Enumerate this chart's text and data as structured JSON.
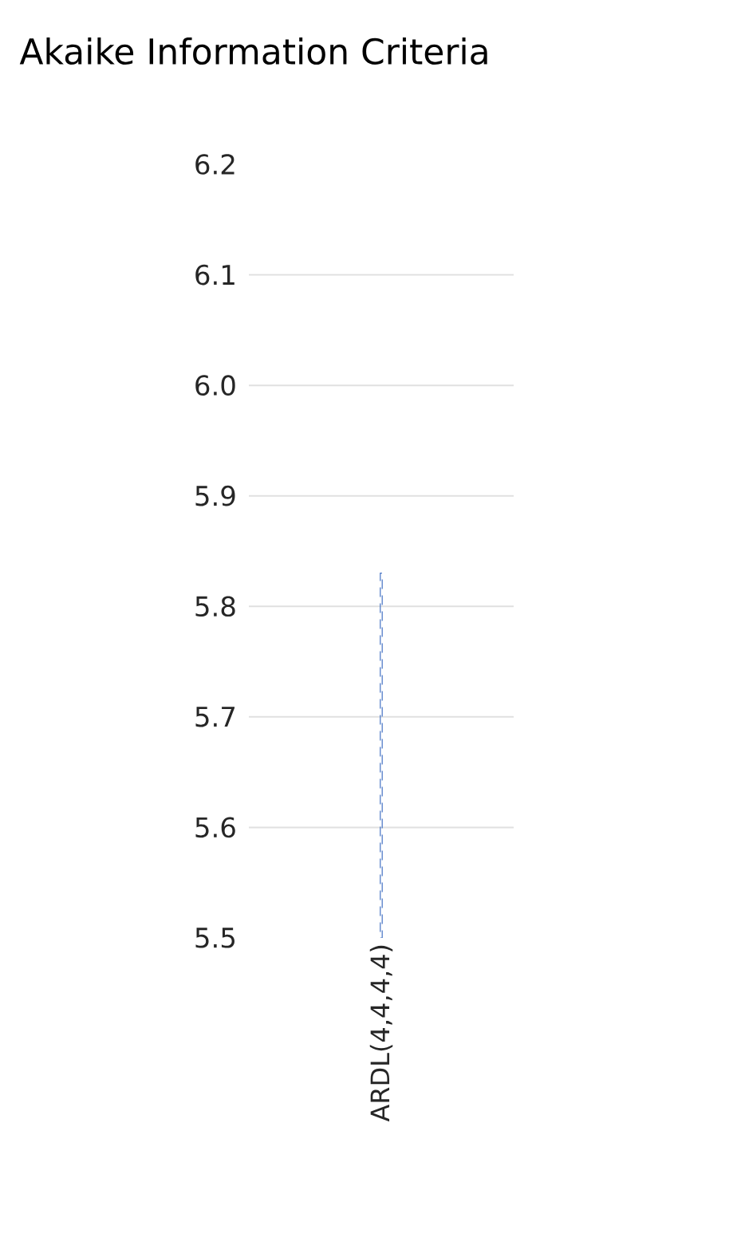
{
  "chart_data": {
    "type": "bar",
    "title": "Akaike Information Criteria",
    "categories": [
      "ARDL(4,4,4,4)"
    ],
    "values": [
      5.83
    ],
    "color": "#4472c4",
    "line_style": "dashed",
    "ylim": [
      5.5,
      6.2
    ],
    "yticks": [
      5.5,
      5.6,
      5.7,
      5.8,
      5.9,
      {
        "value": 6.0,
        "label": "6.0"
      },
      6.1,
      6.2
    ],
    "grid": "y"
  }
}
